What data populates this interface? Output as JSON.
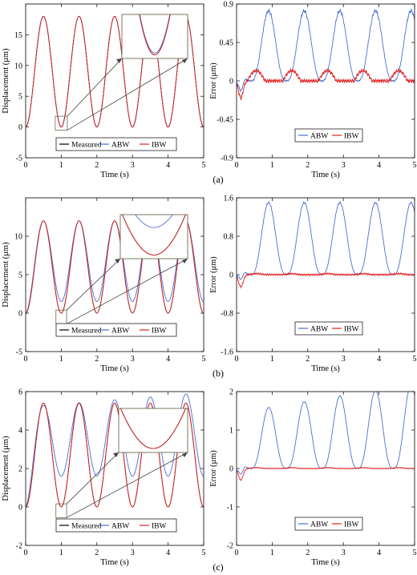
{
  "figure": {
    "panel_labels": [
      "(a)",
      "(b)",
      "(c)"
    ]
  },
  "colors": {
    "measured": "#000000",
    "abw": "#4a6fd0",
    "ibw": "#e02020",
    "inset_box": "#6b6b50",
    "arrow": "#444444"
  },
  "chart_data": [
    {
      "type": "line",
      "panel": "(a)",
      "xlabel": "Time (s)",
      "ylabel": "Displacement (μm)",
      "xlim": [
        0,
        5
      ],
      "ylim": [
        -5,
        20
      ],
      "xticks": [
        0,
        1,
        2,
        3,
        4,
        5
      ],
      "yticks": [
        -5,
        0,
        5,
        10,
        15
      ],
      "legend": [
        "Measured",
        "ABW",
        "IBW"
      ],
      "legend_position": "bottom-center",
      "model": {
        "kind": "displacement",
        "period": 1,
        "measured_amp": 18,
        "abw_amp": 18,
        "abw_min": 0.05,
        "ibw_amp": 18,
        "ibw_min": 0
      },
      "inset": {
        "x_range": [
          0.83,
          1.17
        ],
        "y_range": [
          -0.1,
          1.1
        ]
      },
      "series": [
        {
          "name": "Measured",
          "x": [
            0,
            0.5,
            1,
            1.5,
            2,
            2.5,
            3,
            3.5,
            4,
            4.5,
            5
          ],
          "y": [
            0,
            18,
            0,
            18,
            0,
            18,
            0,
            18,
            0,
            18,
            0
          ]
        },
        {
          "name": "ABW",
          "x": [
            0,
            0.5,
            1,
            1.5,
            2,
            2.5,
            3,
            3.5,
            4,
            4.5,
            5
          ],
          "y": [
            0,
            18,
            0.05,
            18,
            0.05,
            18,
            0.05,
            18,
            0.05,
            18,
            0.05
          ]
        },
        {
          "name": "IBW",
          "x": [
            0,
            0.5,
            1,
            1.5,
            2,
            2.5,
            3,
            3.5,
            4,
            4.5,
            5
          ],
          "y": [
            0,
            18,
            0,
            18,
            0,
            18,
            0,
            18,
            0,
            18,
            0
          ]
        }
      ]
    },
    {
      "type": "line",
      "panel": "(a)",
      "xlabel": "Time (s)",
      "ylabel": "Error (μm)",
      "xlim": [
        0,
        5
      ],
      "ylim": [
        -0.9,
        0.9
      ],
      "xticks": [
        0,
        1,
        2,
        3,
        4,
        5
      ],
      "yticks": [
        -0.9,
        -0.45,
        0,
        0.45,
        0.9
      ],
      "legend": [
        "ABW",
        "IBW"
      ],
      "legend_position": "bottom-center",
      "model": {
        "kind": "error",
        "abw_peak": 0.82,
        "abw_start": -0.2,
        "ibw_peak": 0.12,
        "noise": 0.025
      },
      "series": [
        {
          "name": "ABW",
          "x": [
            0,
            0.1,
            0.5,
            1,
            1.5,
            2,
            2.5,
            3,
            3.5,
            4,
            4.5,
            5
          ],
          "y": [
            0,
            -0.2,
            0.1,
            0.82,
            0.05,
            0.8,
            0.05,
            0.8,
            0.05,
            0.8,
            0.05,
            0.8
          ]
        },
        {
          "name": "IBW",
          "x": [
            0,
            0.1,
            0.6,
            1,
            2,
            3,
            4,
            5
          ],
          "y": [
            0,
            -0.2,
            0.15,
            0.02,
            0.05,
            0.05,
            0.08,
            0.1
          ]
        }
      ]
    },
    {
      "type": "line",
      "panel": "(b)",
      "xlabel": "Time (s)",
      "ylabel": "Displacement (μm)",
      "xlim": [
        0,
        5
      ],
      "ylim": [
        -5,
        15
      ],
      "xticks": [
        0,
        1,
        2,
        3,
        4,
        5
      ],
      "yticks": [
        -5,
        0,
        5,
        10
      ],
      "legend": [
        "Measured",
        "ABW",
        "IBW"
      ],
      "legend_position": "bottom-center",
      "model": {
        "kind": "displacement",
        "period": 1,
        "measured_amp": 12,
        "abw_amp": 12,
        "abw_min": 1.5,
        "ibw_amp": 12,
        "ibw_min": 0
      },
      "inset": {
        "x_range": [
          0.85,
          1.15
        ],
        "y_range": [
          -0.2,
          2.2
        ]
      },
      "series": [
        {
          "name": "Measured",
          "x": [
            0,
            0.5,
            1,
            1.5,
            2,
            2.5,
            3,
            3.5,
            4,
            4.5,
            5
          ],
          "y": [
            0,
            12,
            0,
            12,
            0,
            12,
            0,
            12,
            0,
            12,
            0
          ]
        },
        {
          "name": "ABW",
          "x": [
            0,
            0.5,
            1,
            1.5,
            2,
            2.5,
            3,
            3.5,
            4,
            4.5,
            5
          ],
          "y": [
            0,
            12,
            1.5,
            12,
            1.5,
            12,
            1.5,
            12,
            1.5,
            12,
            1.5
          ]
        },
        {
          "name": "IBW",
          "x": [
            0,
            0.5,
            1,
            1.5,
            2,
            2.5,
            3,
            3.5,
            4,
            4.5,
            5
          ],
          "y": [
            0,
            12,
            0,
            12,
            0,
            12,
            0,
            12,
            0,
            12,
            0
          ]
        }
      ]
    },
    {
      "type": "line",
      "panel": "(b)",
      "xlabel": "Time (s)",
      "ylabel": "Error (μm)",
      "xlim": [
        0,
        5
      ],
      "ylim": [
        -1.6,
        1.6
      ],
      "xticks": [
        0,
        1,
        2,
        3,
        4,
        5
      ],
      "yticks": [
        -1.6,
        -0.8,
        0,
        0.8,
        1.6
      ],
      "legend": [
        "ABW",
        "IBW"
      ],
      "legend_position": "bottom-center",
      "model": {
        "kind": "error",
        "abw_peak": 1.5,
        "abw_start": -0.25,
        "ibw_peak": 0.02,
        "noise": 0.02
      },
      "series": [
        {
          "name": "ABW",
          "x": [
            0,
            0.1,
            0.5,
            1,
            1.5,
            2,
            2.5,
            3,
            3.5,
            4,
            4.5,
            5
          ],
          "y": [
            0,
            -0.25,
            0.05,
            1.45,
            0.05,
            1.5,
            0.05,
            1.5,
            0.05,
            1.5,
            0.05,
            1.55
          ]
        },
        {
          "name": "IBW",
          "x": [
            0,
            0.5,
            1,
            2,
            3,
            4,
            5
          ],
          "y": [
            0,
            0.03,
            -0.08,
            -0.05,
            -0.03,
            -0.02,
            0.02
          ]
        }
      ]
    },
    {
      "type": "line",
      "panel": "(c)",
      "xlabel": "Time (s)",
      "ylabel": "Displacement (μm)",
      "xlim": [
        0,
        5
      ],
      "ylim": [
        -2,
        6
      ],
      "xticks": [
        0,
        1,
        2,
        3,
        4,
        5
      ],
      "yticks": [
        -2,
        0,
        2,
        4,
        6
      ],
      "legend": [
        "Measured",
        "ABW",
        "IBW"
      ],
      "legend_position": "bottom-center",
      "model": {
        "kind": "displacement",
        "period": 1,
        "measured_amp": 5.4,
        "abw_amp": 5.2,
        "abw_min": 1.6,
        "abw_growth": 0.15,
        "ibw_amp": 5.4,
        "ibw_min": 0
      },
      "inset": {
        "x_range": [
          0.85,
          1.15
        ],
        "y_range": [
          -0.1,
          1.0
        ]
      },
      "series": [
        {
          "name": "Measured",
          "x": [
            0,
            0.5,
            1,
            1.5,
            2,
            2.5,
            3,
            3.5,
            4,
            4.5,
            5
          ],
          "y": [
            0,
            5.4,
            0,
            5.4,
            0,
            5.4,
            0,
            5.4,
            0,
            5.4,
            0
          ]
        },
        {
          "name": "ABW",
          "x": [
            0,
            0.5,
            1,
            1.5,
            2,
            2.5,
            3,
            3.5,
            4,
            4.5,
            5
          ],
          "y": [
            0,
            5.2,
            1.6,
            5.5,
            1.6,
            5.7,
            1.7,
            5.8,
            1.8,
            5.8,
            1.9
          ]
        },
        {
          "name": "IBW",
          "x": [
            0,
            0.5,
            1,
            1.5,
            2,
            2.5,
            3,
            3.5,
            4,
            4.5,
            5
          ],
          "y": [
            0,
            5.4,
            0,
            5.4,
            0,
            5.4,
            0,
            5.4,
            0,
            5.4,
            0
          ]
        }
      ]
    },
    {
      "type": "line",
      "panel": "(c)",
      "xlabel": "Time (s)",
      "ylabel": "Error (μm)",
      "xlim": [
        0,
        5
      ],
      "ylim": [
        -2,
        2
      ],
      "xticks": [
        0,
        1,
        2,
        3,
        4,
        5
      ],
      "yticks": [
        -2,
        -1,
        0,
        1,
        2
      ],
      "legend": [
        "ABW",
        "IBW"
      ],
      "legend_position": "bottom-center",
      "model": {
        "kind": "error",
        "abw_peak": 1.6,
        "abw_start": -0.3,
        "abw_growth": 0.15,
        "ibw_peak": 0.02,
        "noise": 0.012
      },
      "series": [
        {
          "name": "ABW",
          "x": [
            0,
            0.3,
            0.5,
            1,
            1.5,
            2,
            2.5,
            3,
            3.5,
            4,
            4.5,
            5
          ],
          "y": [
            0,
            -0.3,
            -0.2,
            1.3,
            0.2,
            1.65,
            0.35,
            1.8,
            0.45,
            1.85,
            0.5,
            1.9
          ]
        },
        {
          "name": "IBW",
          "x": [
            0,
            0.5,
            1,
            2,
            3,
            4,
            5
          ],
          "y": [
            0,
            -0.02,
            0.02,
            0.02,
            0.02,
            0.01,
            0.02
          ]
        }
      ]
    }
  ]
}
